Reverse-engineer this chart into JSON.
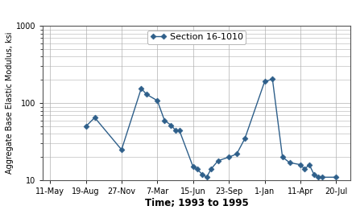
{
  "x_labels": [
    "11-May",
    "19-Aug",
    "27-Nov",
    "7-Mar",
    "15-Jun",
    "23-Sep",
    "1-Jan",
    "11-Apr",
    "20-Jul"
  ],
  "x_vals": [
    1.0,
    1.25,
    2.0,
    2.55,
    2.7,
    3.0,
    3.2,
    3.38,
    3.5,
    3.62,
    4.0,
    4.12,
    4.25,
    4.38,
    4.5,
    4.7,
    5.0,
    5.22,
    5.45,
    6.0,
    6.22,
    6.5,
    6.7,
    7.0,
    7.12,
    7.25,
    7.38,
    7.5,
    7.62,
    8.0
  ],
  "y_vals": [
    50,
    65,
    25,
    155,
    130,
    108,
    60,
    52,
    45,
    44,
    15,
    14,
    12,
    11,
    14,
    18,
    20,
    22,
    35,
    190,
    205,
    20,
    17,
    16,
    14,
    16,
    12,
    11,
    11,
    11
  ],
  "line_color": "#2e5f8a",
  "marker": "D",
  "marker_size": 3.5,
  "legend_label": "Section 16-1010",
  "xlabel": "Time; 1993 to 1995",
  "ylabel": "Aggregate Base Elastic Modulus, ksi",
  "ylim": [
    10,
    1000
  ],
  "xlim": [
    -0.2,
    8.4
  ],
  "background_color": "#ffffff",
  "grid_color": "#b0b0b0",
  "tick_fontsize": 7,
  "ylabel_fontsize": 7,
  "xlabel_fontsize": 8.5,
  "legend_fontsize": 8
}
